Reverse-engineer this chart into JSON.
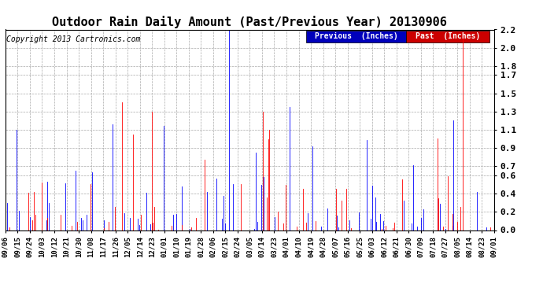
{
  "title": "Outdoor Rain Daily Amount (Past/Previous Year) 20130906",
  "copyright": "Copyright 2013 Cartronics.com",
  "legend_previous_label": "Previous  (Inches)",
  "legend_past_label": "Past  (Inches)",
  "legend_previous_bg": "#0000BB",
  "legend_past_bg": "#CC0000",
  "legend_text_color": "#FFFFFF",
  "ylim": [
    0.0,
    2.2
  ],
  "yticks": [
    0.0,
    0.2,
    0.4,
    0.6,
    0.7,
    0.9,
    1.1,
    1.3,
    1.5,
    1.7,
    1.8,
    2.0,
    2.2
  ],
  "line_previous_color": "#0000FF",
  "line_past_color": "#FF0000",
  "background_color": "#FFFFFF",
  "grid_color": "#AAAAAA",
  "title_fontsize": 11,
  "copyright_fontsize": 7,
  "num_days": 362,
  "x_tick_labels": [
    "09/06",
    "09/15",
    "09/24",
    "10/03",
    "10/12",
    "10/21",
    "10/30",
    "11/08",
    "11/17",
    "11/26",
    "12/05",
    "12/14",
    "12/23",
    "01/01",
    "01/10",
    "01/19",
    "01/28",
    "02/06",
    "02/15",
    "02/24",
    "03/05",
    "03/14",
    "03/23",
    "04/01",
    "04/10",
    "04/19",
    "04/28",
    "05/07",
    "05/16",
    "05/25",
    "06/03",
    "06/12",
    "06/21",
    "06/30",
    "07/09",
    "07/18",
    "07/27",
    "08/05",
    "08/14",
    "08/23",
    "09/01"
  ]
}
